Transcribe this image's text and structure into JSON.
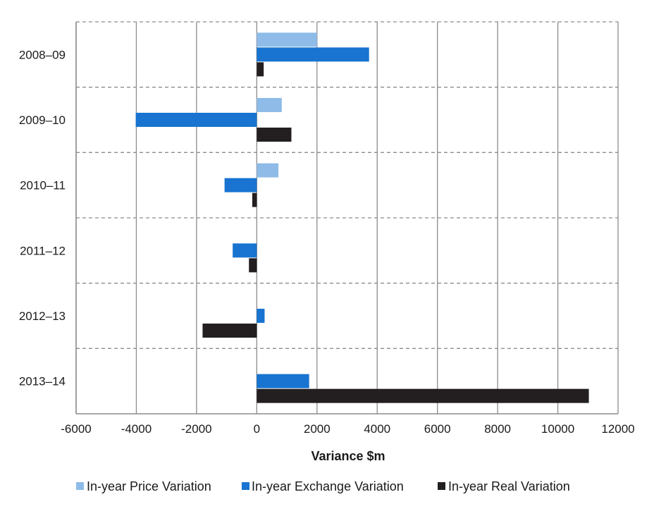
{
  "chart_data": {
    "type": "bar",
    "orientation": "horizontal",
    "categories": [
      "2008–09",
      "2009–10",
      "2010–11",
      "2011–12",
      "2012–13",
      "2013–14"
    ],
    "series": [
      {
        "name": "In-year Price Variation",
        "color": "#8ebbe8",
        "values": [
          2000,
          830,
          720,
          0,
          0,
          0
        ]
      },
      {
        "name": "In-year Exchange Variation",
        "color": "#1874d0",
        "values": [
          3730,
          -4020,
          -1070,
          -800,
          260,
          1740
        ]
      },
      {
        "name": "In-year Real Variation",
        "color": "#231f20",
        "values": [
          230,
          1150,
          -150,
          -260,
          -1800,
          11030
        ]
      }
    ],
    "xlabel": "Variance $m",
    "ylabel": "",
    "xlim": [
      -6000,
      12000
    ],
    "xticks": [
      "-6000",
      "-4000",
      "-2000",
      "0",
      "2000",
      "4000",
      "6000",
      "8000",
      "10000",
      "12000"
    ],
    "grid": {
      "vertical": "solid",
      "horizontal": "dashed"
    },
    "legend": "bottom"
  }
}
